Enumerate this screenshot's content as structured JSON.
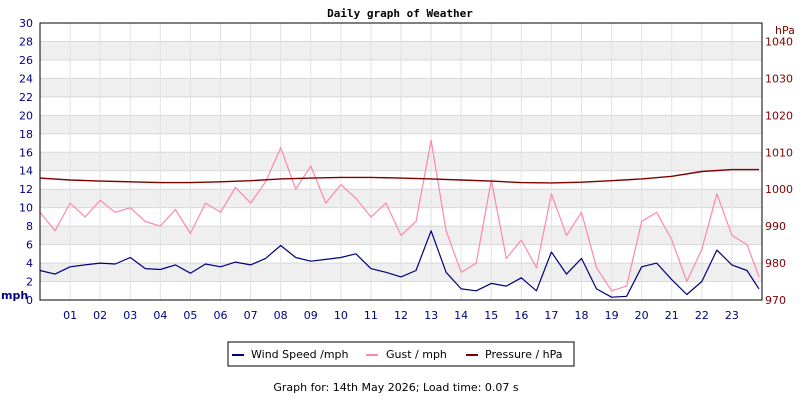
{
  "chart_data": {
    "type": "line",
    "title": "Daily graph of Weather",
    "footer": "Graph for: 14th May 2026; Load time: 0.07 s",
    "y_left": {
      "unit_label": "mph",
      "range": [
        0,
        30
      ],
      "ticks": [
        0,
        2,
        4,
        6,
        8,
        10,
        12,
        14,
        16,
        18,
        20,
        22,
        24,
        26,
        28,
        30
      ]
    },
    "y_right": {
      "unit_label": "hPa",
      "range": [
        970,
        1045
      ],
      "ticks": [
        970,
        980,
        990,
        1000,
        1010,
        1020,
        1030,
        1040
      ]
    },
    "x": {
      "range": [
        0,
        24
      ],
      "tick_labels": [
        "01",
        "02",
        "03",
        "04",
        "05",
        "06",
        "07",
        "08",
        "09",
        "10",
        "11",
        "12",
        "13",
        "14",
        "15",
        "16",
        "17",
        "18",
        "19",
        "20",
        "21",
        "22",
        "23"
      ]
    },
    "grid": true,
    "legend_placement": "bottom-center",
    "series": [
      {
        "name": "Wind Speed /mph",
        "color": "#000080",
        "axis": "left",
        "x": [
          0,
          0.5,
          1,
          1.5,
          2,
          2.5,
          3,
          3.5,
          4,
          4.5,
          5,
          5.5,
          6,
          6.5,
          7,
          7.5,
          8,
          8.5,
          9,
          9.5,
          10,
          10.5,
          11,
          11.5,
          12,
          12.5,
          13,
          13.5,
          14,
          14.5,
          15,
          15.5,
          16,
          16.5,
          17,
          17.5,
          18,
          18.5,
          19,
          19.5,
          20,
          20.5,
          21,
          21.5,
          22,
          22.5,
          23,
          23.5,
          23.9
        ],
        "values": [
          3.2,
          2.8,
          3.6,
          3.8,
          4.0,
          3.9,
          4.6,
          3.4,
          3.3,
          3.8,
          2.9,
          3.9,
          3.6,
          4.1,
          3.8,
          4.5,
          5.9,
          4.6,
          4.2,
          4.4,
          4.6,
          5.0,
          3.4,
          3.0,
          2.5,
          3.2,
          7.5,
          3.0,
          1.2,
          1.0,
          1.8,
          1.5,
          2.4,
          1.0,
          5.2,
          2.8,
          4.5,
          1.2,
          0.3,
          0.4,
          3.6,
          4.0,
          2.2,
          0.6,
          2.0,
          5.4,
          3.8,
          3.2,
          1.2
        ]
      },
      {
        "name": "Gust / mph",
        "color": "#ff88aa",
        "axis": "left",
        "x": [
          0,
          0.5,
          1,
          1.5,
          2,
          2.5,
          3,
          3.5,
          4,
          4.5,
          5,
          5.5,
          6,
          6.5,
          7,
          7.5,
          8,
          8.5,
          9,
          9.5,
          10,
          10.5,
          11,
          11.5,
          12,
          12.5,
          13,
          13.5,
          14,
          14.5,
          15,
          15.5,
          16,
          16.5,
          17,
          17.5,
          18,
          18.5,
          19,
          19.5,
          20,
          20.5,
          21,
          21.5,
          22,
          22.5,
          23,
          23.5,
          23.9
        ],
        "values": [
          9.5,
          7.5,
          10.5,
          9.0,
          10.8,
          9.5,
          10.0,
          8.5,
          8.0,
          9.8,
          7.2,
          10.5,
          9.5,
          12.2,
          10.5,
          12.8,
          16.5,
          12.0,
          14.5,
          10.5,
          12.5,
          11.0,
          9.0,
          10.5,
          7.0,
          8.5,
          17.3,
          7.5,
          3.0,
          4.0,
          13.0,
          4.5,
          6.5,
          3.5,
          11.5,
          7.0,
          9.5,
          3.5,
          1.0,
          1.5,
          8.5,
          9.5,
          6.5,
          2.0,
          5.5,
          11.5,
          7.0,
          6.0,
          2.5
        ]
      },
      {
        "name": "Pressure / hPa",
        "color": "#800000",
        "axis": "right",
        "x": [
          0,
          1,
          2,
          3,
          4,
          5,
          6,
          7,
          8,
          9,
          10,
          11,
          12,
          13,
          14,
          15,
          16,
          17,
          18,
          19,
          20,
          21,
          22,
          23,
          23.9
        ],
        "values": [
          1003,
          1002.5,
          1002.2,
          1002,
          1001.8,
          1001.8,
          1002,
          1002.3,
          1002.8,
          1003,
          1003.2,
          1003.2,
          1003,
          1002.8,
          1002.5,
          1002.2,
          1001.8,
          1001.7,
          1001.9,
          1002.3,
          1002.8,
          1003.5,
          1004.8,
          1005.3,
          1005.3
        ]
      }
    ]
  }
}
